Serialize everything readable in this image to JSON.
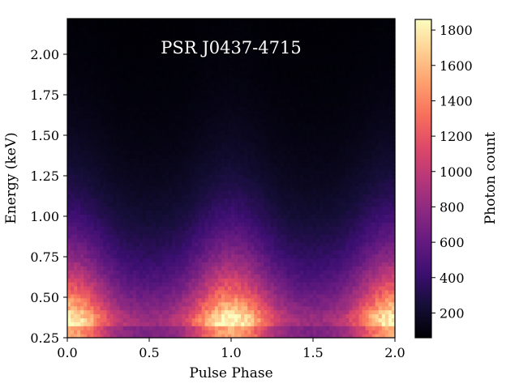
{
  "chart_data": {
    "type": "heatmap",
    "title": "PSR J0437-4715",
    "xlabel": "Pulse Phase",
    "ylabel": "Energy (keV)",
    "xlim": [
      0.0,
      2.0
    ],
    "ylim": [
      0.25,
      2.22
    ],
    "x_ticks": [
      0.0,
      0.5,
      1.0,
      1.5,
      2.0
    ],
    "x_tick_labels": [
      "0.0",
      "0.5",
      "1.0",
      "1.5",
      "2.0"
    ],
    "y_ticks": [
      0.25,
      0.5,
      0.75,
      1.0,
      1.25,
      1.5,
      1.75,
      2.0
    ],
    "y_tick_labels": [
      "0.25",
      "0.50",
      "0.75",
      "1.00",
      "1.25",
      "1.50",
      "1.75",
      "2.00"
    ],
    "colorbar": {
      "label": "Photon count",
      "colormap": "magma",
      "range": [
        60,
        1860
      ],
      "ticks": [
        200,
        400,
        600,
        800,
        1000,
        1200,
        1400,
        1600,
        1800
      ],
      "tick_labels": [
        "200",
        "400",
        "600",
        "800",
        "1000",
        "1200",
        "1400",
        "1600",
        "1800"
      ]
    },
    "phase_bins": 100,
    "energy_bins": 80,
    "pulse_peak_phases": [
      0.0,
      1.0,
      2.0
    ],
    "max_count_at_peak": 1860,
    "min_count": 60,
    "grid": false
  }
}
